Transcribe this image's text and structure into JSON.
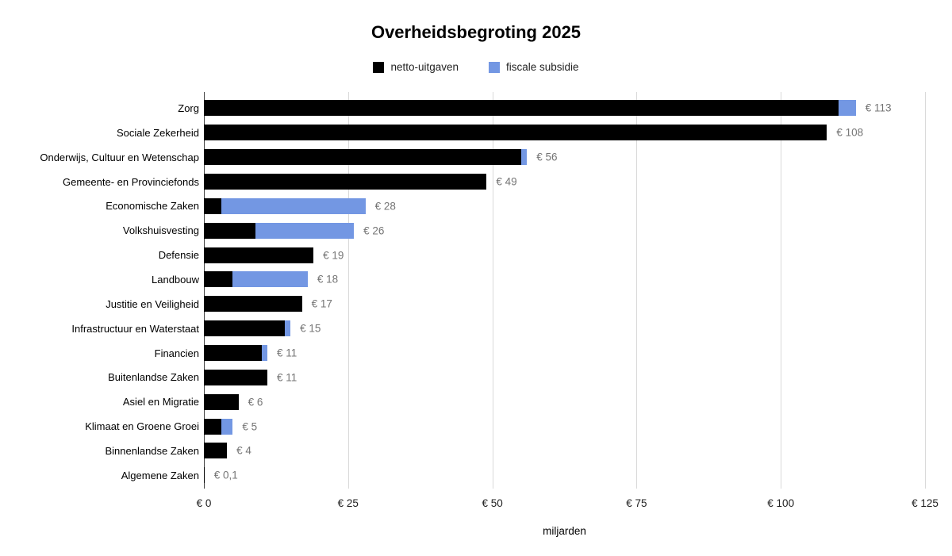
{
  "chart_data": {
    "type": "bar",
    "orientation": "horizontal",
    "stacked": true,
    "title": "Overheidsbegroting 2025",
    "xlabel": "miljarden",
    "xlim": [
      0,
      125
    ],
    "grid": true,
    "legend_position": "top",
    "x_tick_labels": [
      "€ 0",
      "€ 25",
      "€ 50",
      "€ 75",
      "€ 100",
      "€ 125"
    ],
    "x_tick_values": [
      0,
      25,
      50,
      75,
      100,
      125
    ],
    "categories": [
      "Zorg",
      "Sociale Zekerheid",
      "Onderwijs, Cultuur en Wetenschap",
      "Gemeente- en Provinciefonds",
      "Economische Zaken",
      "Volkshuisvesting",
      "Defensie",
      "Landbouw",
      "Justitie en Veiligheid",
      "Infrastructuur en Waterstaat",
      "Financien",
      "Buitenlandse Zaken",
      "Asiel en Migratie",
      "Klimaat en Groene Groei",
      "Binnenlandse Zaken",
      "Algemene Zaken"
    ],
    "series": [
      {
        "name": "netto-uitgaven",
        "color": "#000000",
        "values": [
          110,
          108,
          55,
          49,
          3,
          9,
          19,
          5,
          17,
          14,
          10,
          11,
          6,
          3,
          4,
          0.1
        ]
      },
      {
        "name": "fiscale subsidie",
        "color": "#7397e3",
        "values": [
          3,
          0,
          1,
          0,
          25,
          17,
          0,
          13,
          0,
          1,
          1,
          0,
          0,
          2,
          0,
          0
        ]
      }
    ],
    "totals": [
      113,
      108,
      56,
      49,
      28,
      26,
      19,
      18,
      17,
      15,
      11,
      11,
      6,
      5,
      4,
      0.1
    ],
    "total_labels": [
      "€ 113",
      "€ 108",
      "€ 56",
      "€ 49",
      "€ 28",
      "€ 26",
      "€ 19",
      "€ 18",
      "€ 17",
      "€ 15",
      "€ 11",
      "€ 11",
      "€ 6",
      "€ 5",
      "€ 4",
      "€ 0,1"
    ]
  }
}
